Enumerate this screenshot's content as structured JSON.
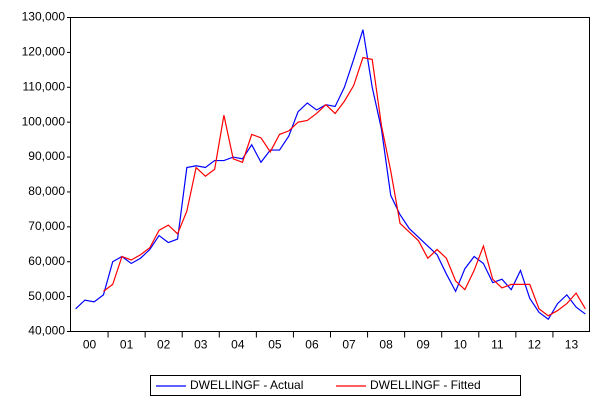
{
  "chart_data": {
    "type": "line",
    "categories": [
      null,
      "00",
      null,
      null,
      null,
      "01",
      null,
      null,
      null,
      "02",
      null,
      null,
      null,
      "03",
      null,
      null,
      null,
      "04",
      null,
      null,
      null,
      "05",
      null,
      null,
      null,
      "06",
      null,
      null,
      null,
      "07",
      null,
      null,
      null,
      "08",
      null,
      null,
      null,
      "09",
      null,
      null,
      null,
      "10",
      null,
      null,
      null,
      "11",
      null,
      null,
      null,
      "12",
      null,
      null,
      null,
      "13",
      null,
      null
    ],
    "series": [
      {
        "name": "DWELLINGF - Actual",
        "color": "#0000ff",
        "values": [
          46500,
          49000,
          48500,
          50500,
          60000,
          61500,
          59500,
          61000,
          63500,
          67500,
          65500,
          66500,
          87000,
          87500,
          87000,
          89000,
          89000,
          90000,
          89500,
          93500,
          88500,
          92000,
          92000,
          96000,
          103000,
          105500,
          103500,
          105000,
          104500,
          110000,
          118000,
          126500,
          110000,
          98000,
          79000,
          73500,
          69500,
          67000,
          64500,
          62000,
          56500,
          51500,
          58000,
          61500,
          59500,
          54000,
          55000,
          52000,
          57500,
          49500,
          45500,
          43500,
          48000,
          50500,
          47000,
          45000
        ]
      },
      {
        "name": "DWELLINGF - Fitted",
        "color": "#ff0000",
        "values": [
          null,
          null,
          null,
          51500,
          53500,
          61500,
          60500,
          62000,
          64000,
          69000,
          70500,
          68000,
          74500,
          87000,
          84500,
          86500,
          102000,
          89500,
          88500,
          96500,
          95500,
          91500,
          96500,
          97500,
          100000,
          100500,
          102500,
          105000,
          102500,
          106000,
          110500,
          118500,
          118000,
          99000,
          86000,
          71000,
          68500,
          66000,
          61000,
          63500,
          61000,
          54500,
          52000,
          57500,
          64500,
          55000,
          52500,
          53500,
          53500,
          53500,
          46500,
          44500,
          46000,
          48000,
          51000,
          46500
        ]
      }
    ],
    "ylim": [
      40000,
      130000
    ],
    "yticks": [
      {
        "value": 40000,
        "label": "40,000"
      },
      {
        "value": 50000,
        "label": "50,000"
      },
      {
        "value": 60000,
        "label": "60,000"
      },
      {
        "value": 70000,
        "label": "70,000"
      },
      {
        "value": 80000,
        "label": "80,000"
      },
      {
        "value": 90000,
        "label": "90,000"
      },
      {
        "value": 100000,
        "label": "100,000"
      },
      {
        "value": 110000,
        "label": "110,000"
      },
      {
        "value": 120000,
        "label": "120,000"
      },
      {
        "value": 130000,
        "label": "130,000"
      }
    ],
    "legend": "bottom"
  }
}
